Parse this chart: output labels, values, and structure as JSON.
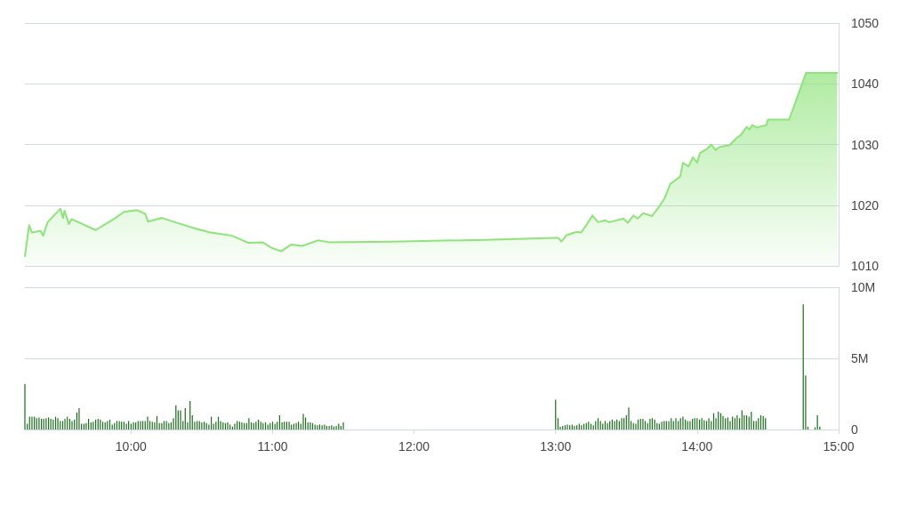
{
  "chart_data": [
    {
      "type": "area",
      "xlim": [
        9.25,
        15
      ],
      "ylim": [
        1010,
        1050
      ],
      "yticks": [
        1010,
        1020,
        1030,
        1040,
        1050
      ],
      "grid": "y",
      "marker": "none",
      "line_style": "solid",
      "tick_labels": "y",
      "series": [
        {
          "color": "#8ee37a",
          "x": [
            9.25,
            9.28,
            9.3,
            9.36,
            9.38,
            9.41,
            9.5,
            9.52,
            9.53,
            9.56,
            9.58,
            9.75,
            9.89,
            9.95,
            10.04,
            10.1,
            10.12,
            10.18,
            10.22,
            10.31,
            10.45,
            10.56,
            10.71,
            10.83,
            10.93,
            10.99,
            11.06,
            11.13,
            11.21,
            11.32,
            11.4,
            11.84,
            12.5,
            13.0,
            13.02,
            13.04,
            13.08,
            13.15,
            13.18,
            13.22,
            13.26,
            13.3,
            13.35,
            13.38,
            13.48,
            13.51,
            13.55,
            13.58,
            13.62,
            13.68,
            13.72,
            13.77,
            13.81,
            13.88,
            13.9,
            13.94,
            13.97,
            14.0,
            14.02,
            14.07,
            14.1,
            14.13,
            14.16,
            14.23,
            14.28,
            14.31,
            14.35,
            14.37,
            14.39,
            14.42,
            14.49,
            14.5,
            14.65,
            14.77,
            14.99
          ],
          "values": [
            1011.6,
            1016.7,
            1015.5,
            1015.8,
            1015.0,
            1017.2,
            1019.4,
            1017.9,
            1019.1,
            1016.9,
            1017.7,
            1015.9,
            1017.9,
            1018.9,
            1019.2,
            1018.6,
            1017.3,
            1017.7,
            1017.9,
            1017.2,
            1016.2,
            1015.5,
            1015.0,
            1013.8,
            1013.9,
            1013.0,
            1012.4,
            1013.5,
            1013.3,
            1014.2,
            1013.9,
            1014.0,
            1014.3,
            1014.6,
            1014.6,
            1014.0,
            1015.1,
            1015.6,
            1015.5,
            1016.8,
            1018.3,
            1017.2,
            1017.5,
            1017.2,
            1017.8,
            1017.1,
            1018.3,
            1017.8,
            1018.7,
            1018.2,
            1019.4,
            1021.1,
            1023.5,
            1024.7,
            1027.0,
            1026.4,
            1027.9,
            1027.0,
            1028.6,
            1029.3,
            1030.0,
            1029.1,
            1029.6,
            1029.9,
            1031.1,
            1031.6,
            1032.9,
            1032.5,
            1033.2,
            1032.8,
            1033.2,
            1034.1,
            1034.1,
            1041.8,
            1041.8
          ]
        }
      ]
    },
    {
      "type": "bar",
      "xlim": [
        9.25,
        15
      ],
      "xticks": [
        {
          "value": 10,
          "label": "10:00"
        },
        {
          "value": 11,
          "label": "11:00"
        },
        {
          "value": 12,
          "label": "12:00"
        },
        {
          "value": 13,
          "label": "13:00"
        },
        {
          "value": 14,
          "label": "14:00"
        },
        {
          "value": 15,
          "label": "15:00"
        }
      ],
      "ylim": [
        0,
        10
      ],
      "yticks": [
        0,
        {
          "value": 5,
          "label": "5M"
        },
        {
          "value": 10,
          "label": "10M"
        }
      ],
      "grid": "y",
      "series": [
        {
          "color": "#1b6e1b",
          "x": [
            9.25,
            9.267,
            9.283,
            9.3,
            9.317,
            9.333,
            9.35,
            9.367,
            9.383,
            9.4,
            9.417,
            9.433,
            9.45,
            9.467,
            9.483,
            9.5,
            9.517,
            9.533,
            9.55,
            9.567,
            9.583,
            9.6,
            9.617,
            9.633,
            9.65,
            9.667,
            9.683,
            9.7,
            9.717,
            9.733,
            9.75,
            9.767,
            9.783,
            9.8,
            9.817,
            9.833,
            9.85,
            9.867,
            9.883,
            9.9,
            9.917,
            9.933,
            9.95,
            9.967,
            9.983,
            10.0,
            10.017,
            10.033,
            10.05,
            10.067,
            10.083,
            10.1,
            10.117,
            10.133,
            10.15,
            10.167,
            10.183,
            10.2,
            10.217,
            10.233,
            10.25,
            10.267,
            10.283,
            10.3,
            10.317,
            10.333,
            10.35,
            10.367,
            10.383,
            10.4,
            10.417,
            10.433,
            10.45,
            10.467,
            10.483,
            10.5,
            10.517,
            10.533,
            10.55,
            10.567,
            10.583,
            10.6,
            10.617,
            10.633,
            10.65,
            10.667,
            10.683,
            10.7,
            10.717,
            10.733,
            10.75,
            10.767,
            10.783,
            10.8,
            10.817,
            10.833,
            10.85,
            10.867,
            10.883,
            10.9,
            10.917,
            10.933,
            10.95,
            10.967,
            10.983,
            11.0,
            11.017,
            11.033,
            11.05,
            11.067,
            11.083,
            11.1,
            11.117,
            11.133,
            11.15,
            11.167,
            11.183,
            11.2,
            11.217,
            11.233,
            11.25,
            11.267,
            11.283,
            11.3,
            11.317,
            11.333,
            11.35,
            11.367,
            11.383,
            11.4,
            11.417,
            11.433,
            11.45,
            11.467,
            11.483,
            11.5,
            13.0,
            13.017,
            13.033,
            13.05,
            13.067,
            13.083,
            13.1,
            13.117,
            13.133,
            13.15,
            13.167,
            13.183,
            13.2,
            13.217,
            13.233,
            13.25,
            13.267,
            13.283,
            13.3,
            13.317,
            13.333,
            13.35,
            13.367,
            13.383,
            13.4,
            13.417,
            13.433,
            13.45,
            13.467,
            13.483,
            13.5,
            13.517,
            13.533,
            13.55,
            13.567,
            13.583,
            13.6,
            13.617,
            13.633,
            13.65,
            13.667,
            13.683,
            13.7,
            13.717,
            13.733,
            13.75,
            13.767,
            13.783,
            13.8,
            13.817,
            13.833,
            13.85,
            13.867,
            13.883,
            13.9,
            13.917,
            13.933,
            13.95,
            13.967,
            13.983,
            14.0,
            14.017,
            14.033,
            14.05,
            14.067,
            14.083,
            14.1,
            14.117,
            14.133,
            14.15,
            14.167,
            14.183,
            14.2,
            14.217,
            14.233,
            14.25,
            14.267,
            14.283,
            14.3,
            14.317,
            14.333,
            14.35,
            14.367,
            14.383,
            14.4,
            14.417,
            14.433,
            14.45,
            14.467,
            14.483,
            14.75,
            14.767,
            14.783,
            14.833,
            14.85,
            14.867
          ],
          "values": [
            3.2,
            0.4,
            0.9,
            0.9,
            0.9,
            0.8,
            0.85,
            0.75,
            0.75,
            0.8,
            0.85,
            0.75,
            0.7,
            0.9,
            0.8,
            0.6,
            0.6,
            0.75,
            0.9,
            0.75,
            0.6,
            0.7,
            1.2,
            1.5,
            0.4,
            0.4,
            0.45,
            0.75,
            0.5,
            0.55,
            0.7,
            0.75,
            0.7,
            0.55,
            0.5,
            0.6,
            0.7,
            0.35,
            0.45,
            0.6,
            0.6,
            0.55,
            0.55,
            0.4,
            0.6,
            0.4,
            0.5,
            0.5,
            0.6,
            0.6,
            0.6,
            0.6,
            0.9,
            0.6,
            0.55,
            0.5,
            0.95,
            0.45,
            0.45,
            0.6,
            0.6,
            0.45,
            0.5,
            0.8,
            1.7,
            1.35,
            1.35,
            0.6,
            1.5,
            0.5,
            2.0,
            1.0,
            0.55,
            0.6,
            0.6,
            0.5,
            0.55,
            0.45,
            0.35,
            0.9,
            0.4,
            0.55,
            0.9,
            0.6,
            0.5,
            0.45,
            0.5,
            0.35,
            0.2,
            0.4,
            0.6,
            0.55,
            0.5,
            0.45,
            0.45,
            0.8,
            0.5,
            0.45,
            0.55,
            0.7,
            0.55,
            0.45,
            0.5,
            0.35,
            0.45,
            0.55,
            0.4,
            0.55,
            1.0,
            0.5,
            0.55,
            0.55,
            0.55,
            0.35,
            0.4,
            0.45,
            0.55,
            0.4,
            1.1,
            0.85,
            0.5,
            0.5,
            0.45,
            0.35,
            0.3,
            0.35,
            0.3,
            0.35,
            0.25,
            0.25,
            0.3,
            0.2,
            0.25,
            0.4,
            0.25,
            0.5,
            2.1,
            0.8,
            0.2,
            0.25,
            0.3,
            0.35,
            0.3,
            0.35,
            0.25,
            0.3,
            0.4,
            0.3,
            0.4,
            0.45,
            0.55,
            0.4,
            0.3,
            0.6,
            0.8,
            0.6,
            0.4,
            0.6,
            0.45,
            0.6,
            0.7,
            0.6,
            0.7,
            0.6,
            0.8,
            0.8,
            1.0,
            1.55,
            0.6,
            0.45,
            0.4,
            0.7,
            0.75,
            0.75,
            0.6,
            0.45,
            0.75,
            0.8,
            0.7,
            0.45,
            0.4,
            0.55,
            0.6,
            0.6,
            0.6,
            0.8,
            0.6,
            0.8,
            0.6,
            0.8,
            0.9,
            0.7,
            0.6,
            0.6,
            0.75,
            0.8,
            0.8,
            0.7,
            0.8,
            0.65,
            0.6,
            0.8,
            0.6,
            1.15,
            0.8,
            1.25,
            1.15,
            0.95,
            0.8,
            0.85,
            0.6,
            0.9,
            0.8,
            1.0,
            0.8,
            1.35,
            1.0,
            1.0,
            0.9,
            1.25,
            0.6,
            0.6,
            0.8,
            1.0,
            0.95,
            0.8,
            8.8,
            3.8,
            0.2,
            0.15,
            1.0,
            0.2
          ]
        }
      ]
    }
  ]
}
